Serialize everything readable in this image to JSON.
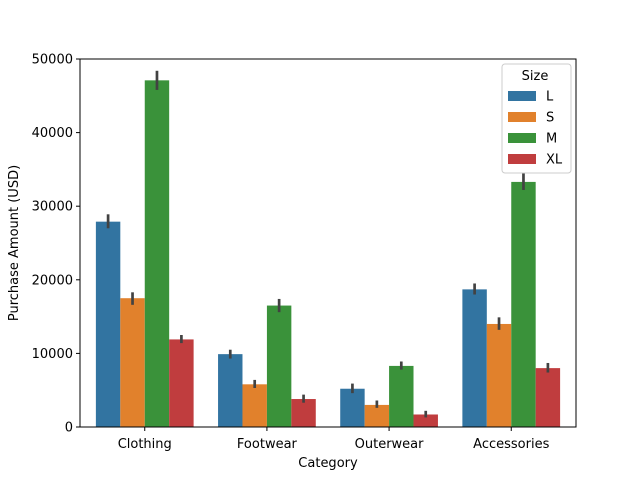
{
  "chart_data": {
    "type": "bar",
    "xlabel": "Category",
    "ylabel": "Purchase Amount (USD)",
    "categories": [
      "Clothing",
      "Footwear",
      "Outerwear",
      "Accessories"
    ],
    "ylim": [
      0,
      50000
    ],
    "yticks": [
      0,
      10000,
      20000,
      30000,
      40000,
      50000
    ],
    "ytick_labels": [
      "0",
      "10000",
      "20000",
      "30000",
      "40000",
      "50000"
    ],
    "grid": false,
    "legend": {
      "title": "Size",
      "position": "top-right"
    },
    "series": [
      {
        "name": "L",
        "color": "#3274a1",
        "values": [
          27900,
          9900,
          5200,
          18700
        ],
        "errors": [
          [
            27000,
            28900
          ],
          [
            9300,
            10500
          ],
          [
            4600,
            5900
          ],
          [
            18000,
            19500
          ]
        ]
      },
      {
        "name": "S",
        "color": "#e1812c",
        "values": [
          17500,
          5800,
          3000,
          14000
        ],
        "errors": [
          [
            16600,
            18300
          ],
          [
            5300,
            6400
          ],
          [
            2600,
            3600
          ],
          [
            13200,
            14900
          ]
        ]
      },
      {
        "name": "M",
        "color": "#3a923a",
        "values": [
          47100,
          16500,
          8300,
          33300
        ],
        "errors": [
          [
            45800,
            48400
          ],
          [
            15600,
            17400
          ],
          [
            7800,
            8900
          ],
          [
            32200,
            34500
          ]
        ]
      },
      {
        "name": "XL",
        "color": "#c03d3e",
        "values": [
          11900,
          3800,
          1700,
          8000
        ],
        "errors": [
          [
            11400,
            12500
          ],
          [
            3300,
            4400
          ],
          [
            1300,
            2200
          ],
          [
            7400,
            8700
          ]
        ]
      }
    ]
  }
}
